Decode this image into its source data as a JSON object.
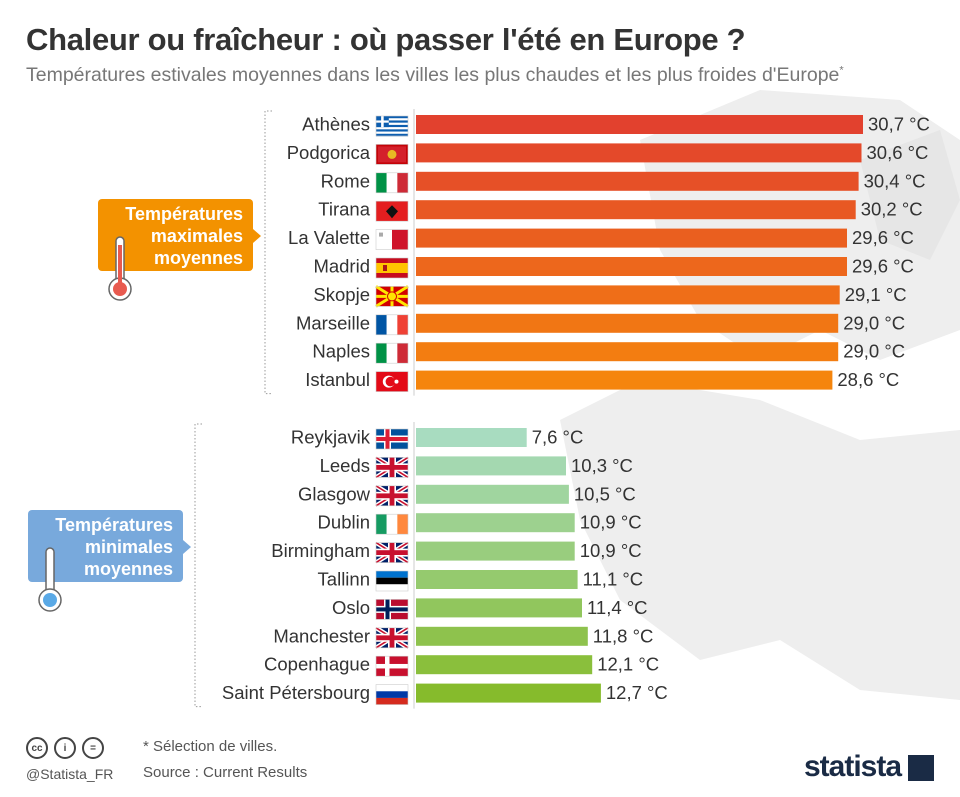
{
  "title": "Chaleur ou fraîcheur : où passer l'été en Europe ?",
  "subtitle": "Températures estivales moyennes dans les villes les plus chaudes et les plus froides d'Europe",
  "subtitle_mark": "*",
  "colors": {
    "hot_start": "#e2412e",
    "hot_end": "#f5850d",
    "cold_start": "#a8dcc0",
    "cold_end": "#86bb2c",
    "hot_badge": "#f39200",
    "cold_badge": "#78a9dc"
  },
  "chart_data": [
    {
      "type": "bar",
      "orientation": "horizontal",
      "group_label": [
        "Températures",
        "maximales",
        "moyennes"
      ],
      "categories": [
        "Athènes",
        "Podgorica",
        "Rome",
        "Tirana",
        "La Valette",
        "Madrid",
        "Skopje",
        "Marseille",
        "Naples",
        "Istanbul"
      ],
      "flags": [
        "GR",
        "ME",
        "IT",
        "AL",
        "MT",
        "ES",
        "MK",
        "FR",
        "IT",
        "TR"
      ],
      "values": [
        30.7,
        30.6,
        30.4,
        30.2,
        29.6,
        29.6,
        29.1,
        29.0,
        29.0,
        28.6
      ],
      "value_labels": [
        "30,7 °C",
        "30,6 °C",
        "30,4 °C",
        "30,2 °C",
        "29,6 °C",
        "29,6 °C",
        "29,1 °C",
        "29,0 °C",
        "29,0 °C",
        "28,6 °C"
      ],
      "xlim": [
        0,
        30.7
      ]
    },
    {
      "type": "bar",
      "orientation": "horizontal",
      "group_label": [
        "Températures",
        "minimales",
        "moyennes"
      ],
      "categories": [
        "Reykjavik",
        "Leeds",
        "Glasgow",
        "Dublin",
        "Birmingham",
        "Tallinn",
        "Oslo",
        "Manchester",
        "Copenhague",
        "Saint Pétersbourg"
      ],
      "flags": [
        "IS",
        "GB",
        "GB",
        "IE",
        "GB",
        "EE",
        "NO",
        "GB",
        "DK",
        "RU"
      ],
      "values": [
        7.6,
        10.3,
        10.5,
        10.9,
        10.9,
        11.1,
        11.4,
        11.8,
        12.1,
        12.7
      ],
      "value_labels": [
        "7,6 °C",
        "10,3 °C",
        "10,5 °C",
        "10,9 °C",
        "10,9 °C",
        "11,1 °C",
        "11,4 °C",
        "11,8 °C",
        "12,1 °C",
        "12,7 °C"
      ],
      "xlim": [
        0,
        30.7
      ]
    }
  ],
  "footer": {
    "note": "* Sélection de villes.",
    "source": "Source : Current Results",
    "handle": "@Statista_FR",
    "brand": "statista",
    "license_icons": [
      "cc",
      "by",
      "nd"
    ]
  }
}
